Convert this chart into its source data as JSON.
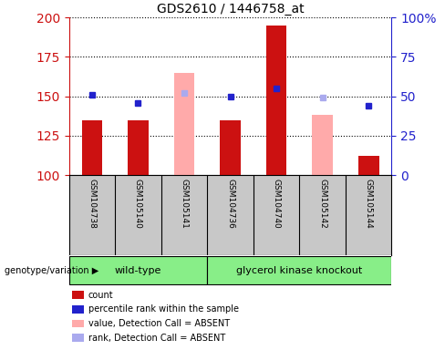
{
  "title": "GDS2610 / 1446758_at",
  "samples": [
    "GSM104738",
    "GSM105140",
    "GSM105141",
    "GSM104736",
    "GSM104740",
    "GSM105142",
    "GSM105144"
  ],
  "red_bars": [
    135,
    135,
    null,
    135,
    195,
    null,
    112
  ],
  "blue_dots_pct": [
    51,
    46,
    null,
    50,
    55,
    null,
    44
  ],
  "pink_bars": [
    null,
    null,
    165,
    null,
    null,
    138,
    null
  ],
  "lightblue_dots_pct": [
    null,
    null,
    52,
    null,
    null,
    49,
    null
  ],
  "ylim_left": [
    100,
    200
  ],
  "ylim_right": [
    0,
    100
  ],
  "yticks_left": [
    100,
    125,
    150,
    175,
    200
  ],
  "yticks_right": [
    0,
    25,
    50,
    75,
    100
  ],
  "bar_width": 0.45,
  "red_color": "#cc1111",
  "pink_color": "#ffaaaa",
  "blue_color": "#2222cc",
  "lightblue_color": "#aaaaee",
  "bg_plot": "#ffffff",
  "bg_samples": "#c8c8c8",
  "green_color": "#88ee88",
  "ylabel_left_color": "#cc1111",
  "ylabel_right_color": "#2222cc",
  "legend_items": [
    {
      "label": "count",
      "color": "#cc1111"
    },
    {
      "label": "percentile rank within the sample",
      "color": "#2222cc"
    },
    {
      "label": "value, Detection Call = ABSENT",
      "color": "#ffaaaa"
    },
    {
      "label": "rank, Detection Call = ABSENT",
      "color": "#aaaaee"
    }
  ],
  "wt_samples": [
    0,
    1,
    2
  ],
  "gk_samples": [
    3,
    4,
    5,
    6
  ]
}
